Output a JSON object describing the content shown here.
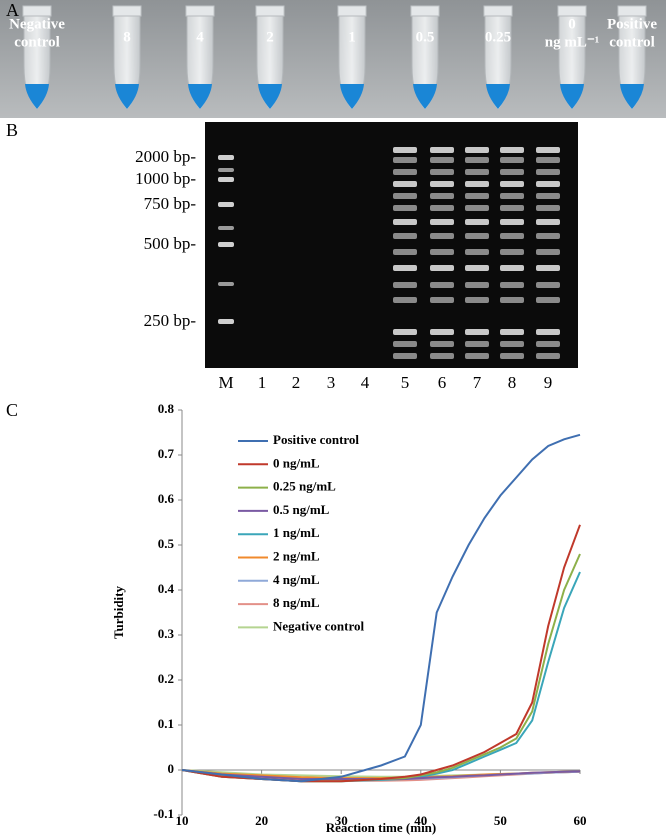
{
  "panel_a": {
    "letter": "A",
    "tube_labels": [
      [
        "Negative",
        "control"
      ],
      [
        "8"
      ],
      [
        "4"
      ],
      [
        "2"
      ],
      [
        "1"
      ],
      [
        "0.5"
      ],
      [
        "0.25"
      ],
      [
        "0",
        "ng mL⁻¹"
      ],
      [
        "Positive",
        "control"
      ]
    ]
  },
  "panel_b": {
    "letter": "B",
    "marker_labels": [
      "2000 bp-",
      "1000 bp-",
      "750 bp-",
      "500 bp-",
      "250 bp-"
    ],
    "lane_labels": [
      "M",
      "1",
      "2",
      "3",
      "4",
      "5",
      "6",
      "7",
      "8",
      "9"
    ]
  },
  "panel_c": {
    "letter": "C"
  },
  "chart_data": {
    "type": "line",
    "x_label": "Reaction time (min)",
    "y_label": "Turbidity",
    "x": [
      10,
      15,
      20,
      25,
      30,
      35,
      38,
      40,
      42,
      44,
      46,
      48,
      50,
      52,
      54,
      56,
      58,
      60
    ],
    "series": [
      {
        "name": "Positive control",
        "color": "#3f6fb1",
        "values": [
          0,
          -0.01,
          -0.02,
          -0.025,
          -0.015,
          0.01,
          0.03,
          0.1,
          0.35,
          0.43,
          0.5,
          0.56,
          0.61,
          0.65,
          0.69,
          0.72,
          0.735,
          0.745
        ]
      },
      {
        "name": "0 ng/mL",
        "color": "#c0392b",
        "values": [
          0,
          -0.015,
          -0.02,
          -0.025,
          -0.025,
          -0.02,
          -0.015,
          -0.01,
          0,
          0.01,
          0.025,
          0.04,
          0.06,
          0.08,
          0.15,
          0.32,
          0.45,
          0.545
        ]
      },
      {
        "name": "0.25 ng/mL",
        "color": "#8db04a",
        "values": [
          0,
          -0.015,
          -0.02,
          -0.025,
          -0.025,
          -0.02,
          -0.018,
          -0.012,
          -0.005,
          0.005,
          0.02,
          0.035,
          0.05,
          0.07,
          0.13,
          0.28,
          0.4,
          0.48
        ]
      },
      {
        "name": "0.5 ng/mL",
        "color": "#7a5aa3",
        "values": [
          0,
          -0.01,
          -0.015,
          -0.02,
          -0.02,
          -0.02,
          -0.02,
          -0.018,
          -0.016,
          -0.015,
          -0.013,
          -0.012,
          -0.01,
          -0.008,
          -0.006,
          -0.005,
          -0.004,
          -0.003
        ]
      },
      {
        "name": "1 ng/mL",
        "color": "#3aa6b9",
        "values": [
          0,
          -0.015,
          -0.02,
          -0.025,
          -0.025,
          -0.022,
          -0.02,
          -0.015,
          -0.008,
          0,
          0.015,
          0.03,
          0.045,
          0.06,
          0.11,
          0.24,
          0.36,
          0.44
        ]
      },
      {
        "name": "2 ng/mL",
        "color": "#f08a2c",
        "values": [
          0,
          -0.008,
          -0.012,
          -0.016,
          -0.018,
          -0.018,
          -0.017,
          -0.016,
          -0.015,
          -0.014,
          -0.012,
          -0.01,
          -0.009,
          -0.008,
          -0.006,
          -0.005,
          -0.004,
          -0.003
        ]
      },
      {
        "name": "4 ng/mL",
        "color": "#8fa9d8",
        "values": [
          0,
          -0.01,
          -0.015,
          -0.018,
          -0.02,
          -0.02,
          -0.02,
          -0.019,
          -0.018,
          -0.016,
          -0.014,
          -0.012,
          -0.01,
          -0.009,
          -0.008,
          -0.006,
          -0.005,
          -0.004
        ]
      },
      {
        "name": "8 ng/mL",
        "color": "#e39088",
        "values": [
          0,
          -0.012,
          -0.018,
          -0.022,
          -0.024,
          -0.024,
          -0.023,
          -0.022,
          -0.02,
          -0.018,
          -0.016,
          -0.014,
          -0.012,
          -0.01,
          -0.008,
          -0.006,
          -0.005,
          -0.004
        ]
      },
      {
        "name": "Negative control",
        "color": "#b5d490",
        "values": [
          0,
          -0.005,
          -0.01,
          -0.012,
          -0.014,
          -0.015,
          -0.015,
          -0.014,
          -0.013,
          -0.012,
          -0.011,
          -0.01,
          -0.009,
          -0.008,
          -0.007,
          -0.006,
          -0.005,
          -0.004
        ]
      }
    ],
    "xlim": [
      10,
      60
    ],
    "xticks": [
      10,
      20,
      30,
      40,
      50,
      60
    ],
    "ylim": [
      -0.1,
      0.8
    ],
    "yticks": [
      -0.1,
      0,
      0.1,
      0.2,
      0.3,
      0.4,
      0.5,
      0.6,
      0.7,
      0.8
    ],
    "legend": "upper left"
  }
}
